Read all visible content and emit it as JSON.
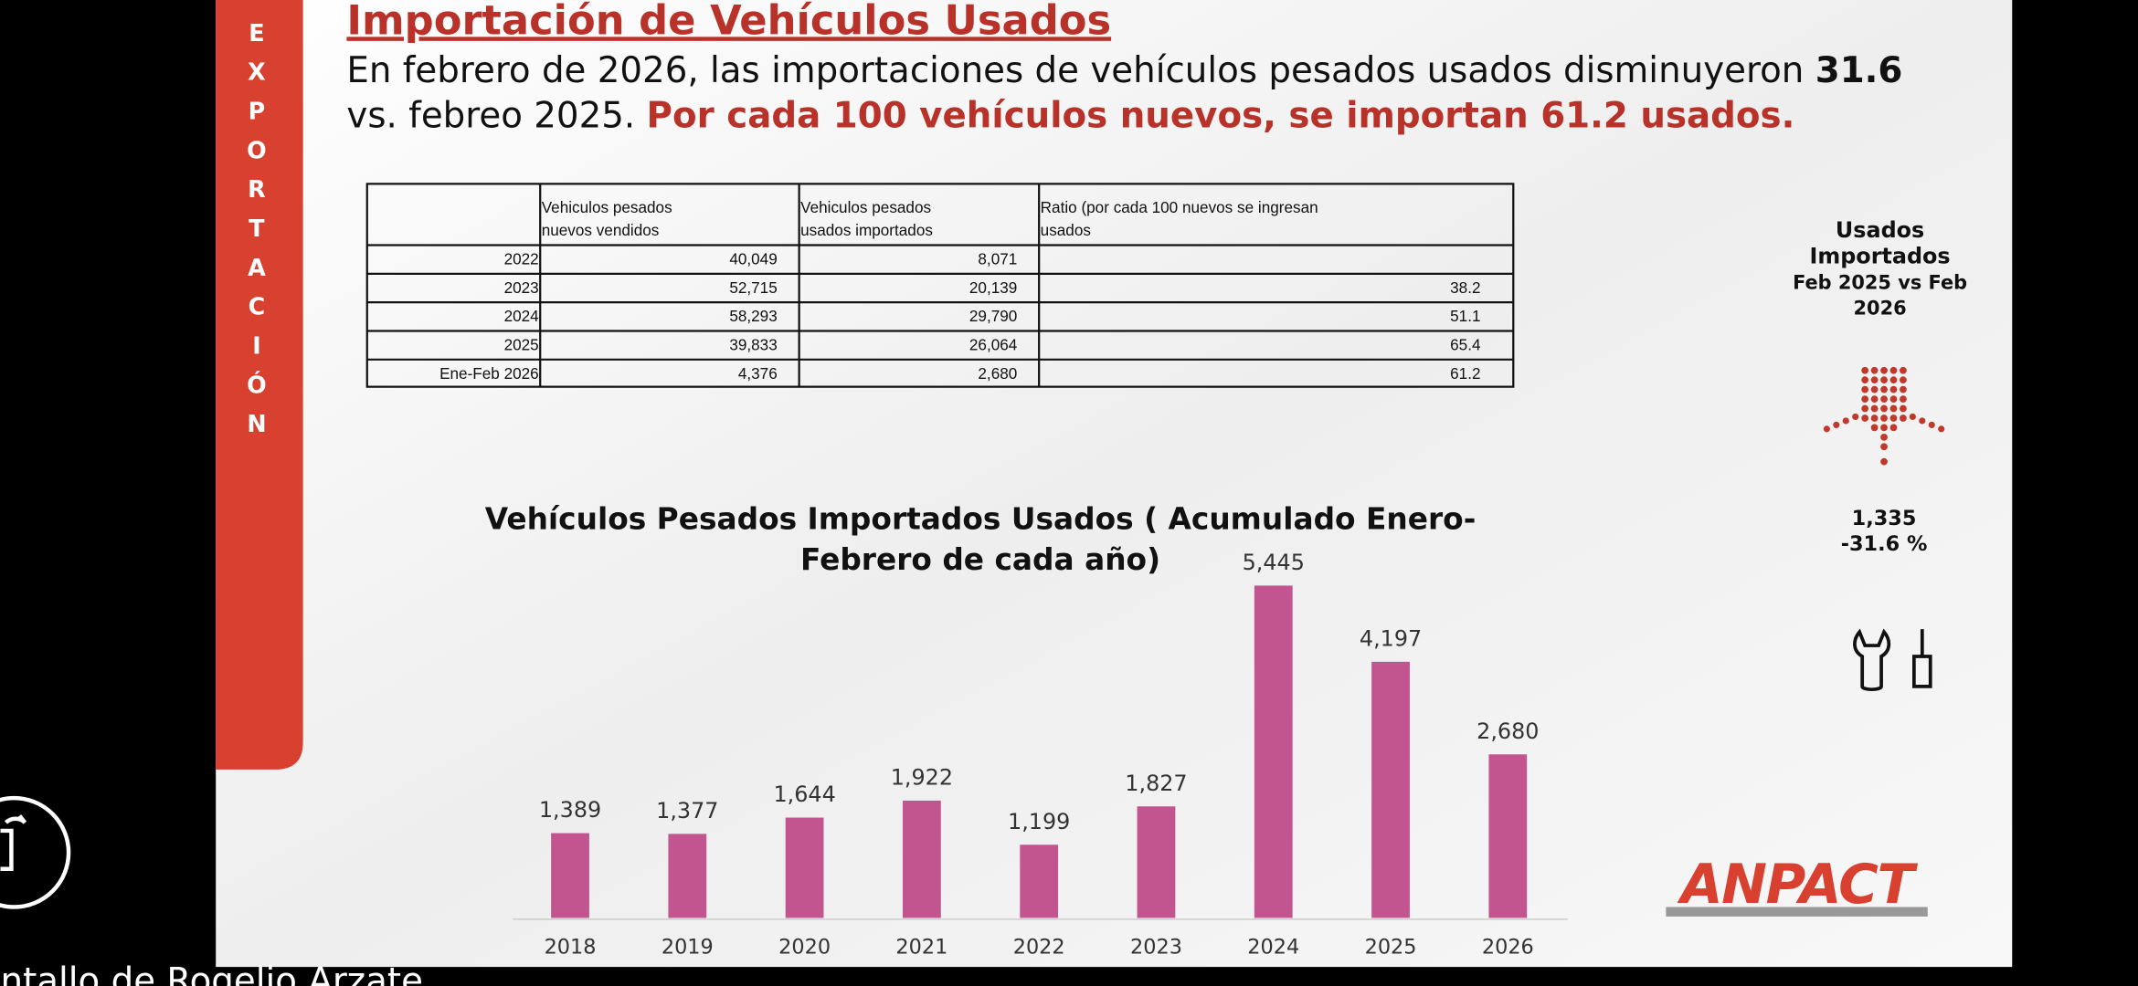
{
  "slide": {
    "sidebar": "EXPORTACIÓN",
    "title": "Importación de Vehículos Usados",
    "intro": [
      "En febrero de 2026, las importaciones de vehículos pesados usados disminuyeron",
      "31.6",
      "vs. febreo 2025.",
      "Por cada 100 vehículos nuevos, se importan 61.2 usados."
    ],
    "table": {
      "headers": [
        [
          "Vehiculos pesados",
          "nuevos vendidos"
        ],
        [
          "Vehiculos pesados",
          "usados importados"
        ],
        [
          "Ratio (por cada 100 nuevos se ingresan",
          "usados"
        ]
      ],
      "rows": [
        [
          "2022",
          "40,049",
          "8,071",
          null
        ],
        [
          "2023",
          "52,715",
          "20,139",
          "38.2"
        ],
        [
          "2024",
          "58,293",
          "29,790",
          "51.1"
        ],
        [
          "2025",
          "39,833",
          "26,064",
          "65.4"
        ],
        [
          "Ene-Feb 2026",
          "4,376",
          "2,680",
          "61.2"
        ]
      ]
    },
    "side_panel": {
      "heading": [
        "Usados",
        "Importados",
        "Feb 2025 vs Feb",
        "2026"
      ],
      "value": "1,335",
      "change": "-31.6 %"
    },
    "logo": "ANPACT",
    "caption": "ntallo de Rogelio Arzate"
  },
  "chart_data": {
    "type": "bar",
    "title": [
      "Vehículos Pesados Importados Usados ( Acumulado Enero-",
      "Febrero de cada año)"
    ],
    "categories": [
      "2018",
      "2019",
      "2020",
      "2021",
      "2022",
      "2023",
      "2024",
      "2025",
      "2026"
    ],
    "values": [
      1389,
      1377,
      1644,
      1922,
      1199,
      1827,
      5445,
      4197,
      2680
    ],
    "value_labels": [
      "1,389",
      "1,377",
      "1,644",
      "1,922",
      "1,199",
      "1,827",
      "5,445",
      "4,197",
      "2,680"
    ],
    "color": "#c2558f"
  }
}
